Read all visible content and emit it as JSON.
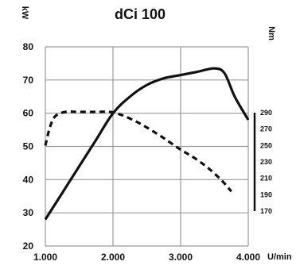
{
  "chart_data": {
    "type": "line",
    "title": "dCi 100",
    "xlabel": "U/min",
    "ylabel_left": "kW",
    "ylabel_right": "Nm",
    "x_ticks": [
      "1.000",
      "2.000",
      "3.000",
      "4.000"
    ],
    "x_tick_values": [
      1000,
      2000,
      3000,
      4000
    ],
    "y_left_ticks": [
      "20",
      "30",
      "40",
      "50",
      "60",
      "70",
      "80"
    ],
    "y_left_values": [
      20,
      30,
      40,
      50,
      60,
      70,
      80
    ],
    "y_right_ticks": [
      "290",
      "270",
      "250",
      "230",
      "210",
      "190",
      "170"
    ],
    "y_right_values": [
      290,
      270,
      250,
      230,
      210,
      190,
      170
    ],
    "xlim": [
      1000,
      4000
    ],
    "ylim_left": [
      20,
      80
    ],
    "ylim_right": [
      170,
      290
    ],
    "grid": true,
    "series": [
      {
        "style": "solid",
        "axis": "left",
        "x": [
          1000,
          1250,
          1500,
          1750,
          2000,
          2250,
          2500,
          2750,
          3000,
          3250,
          3500,
          3650,
          3800,
          4000
        ],
        "y": [
          28,
          36,
          44,
          52,
          60,
          65,
          68.5,
          70.5,
          71.5,
          72.5,
          73.5,
          72,
          65,
          58
        ]
      },
      {
        "style": "dashed",
        "axis": "right",
        "x": [
          1000,
          1070,
          1150,
          1300,
          1500,
          1750,
          1950,
          2100,
          2300,
          2500,
          2750,
          3000,
          3200,
          3400,
          3600,
          3750
        ],
        "y": [
          250,
          273,
          286,
          291,
          291,
          291,
          291,
          288,
          281,
          272,
          259,
          245,
          235,
          223,
          208,
          194
        ]
      }
    ]
  },
  "colors": {
    "line": "#111111",
    "grid": "#9a9a9a",
    "background": "#ffffff"
  }
}
